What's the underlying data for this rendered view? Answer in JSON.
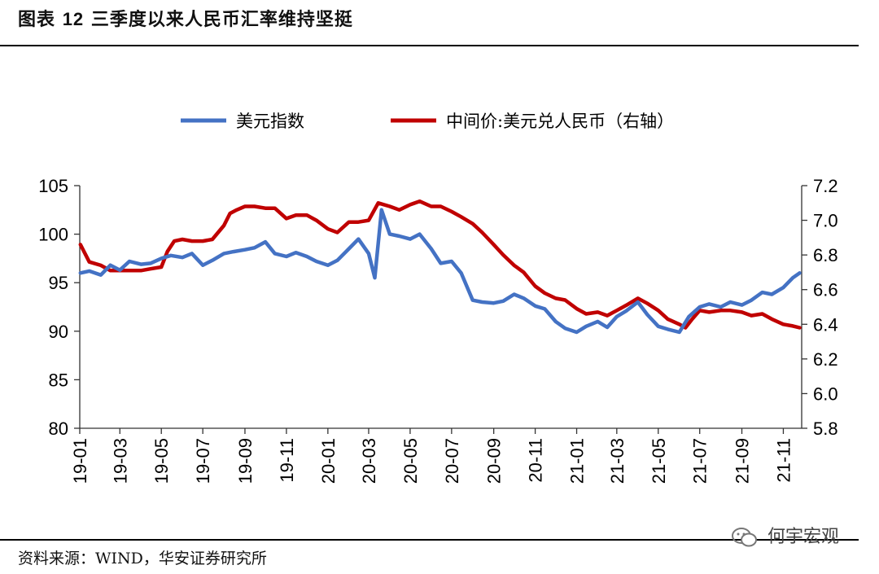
{
  "header": {
    "figure_label": "图表",
    "figure_number": "12",
    "title": "三季度以来人民币汇率维持坚挺"
  },
  "footer": {
    "source": "资料来源：WIND，华安证券研究所",
    "watermark": "何宇宏观"
  },
  "colors": {
    "usd_index": "#4472C4",
    "cny_mid": "#C00000"
  },
  "chart_data": {
    "type": "line",
    "x_tick_labels": [
      "19-01",
      "19-03",
      "19-05",
      "19-07",
      "19-09",
      "19-11",
      "20-01",
      "20-03",
      "20-05",
      "20-07",
      "20-09",
      "20-11",
      "21-01",
      "21-03",
      "21-05",
      "21-07",
      "21-09",
      "21-11"
    ],
    "y_left": {
      "ticks": [
        "105",
        "100",
        "95",
        "90",
        "85",
        "80"
      ],
      "range": [
        80,
        105
      ]
    },
    "y_right": {
      "ticks": [
        "7.2",
        "7.0",
        "6.8",
        "6.6",
        "6.4",
        "6.2",
        "6.0",
        "5.8"
      ],
      "range": [
        5.8,
        7.2
      ]
    },
    "legend": [
      "美元指数",
      "中间价:美元兑人民币（右轴）"
    ],
    "legend_position": "top-center",
    "grid": false,
    "series": [
      {
        "name": "美元指数",
        "axis": "left",
        "x": [
          "2019-01-02",
          "2019-01-15",
          "2019-02-01",
          "2019-02-15",
          "2019-03-01",
          "2019-03-15",
          "2019-04-01",
          "2019-04-15",
          "2019-05-01",
          "2019-05-15",
          "2019-06-01",
          "2019-06-15",
          "2019-07-01",
          "2019-07-15",
          "2019-08-01",
          "2019-08-15",
          "2019-09-01",
          "2019-09-15",
          "2019-10-01",
          "2019-10-15",
          "2019-11-01",
          "2019-11-15",
          "2019-12-01",
          "2019-12-15",
          "2020-01-01",
          "2020-01-15",
          "2020-02-01",
          "2020-02-15",
          "2020-03-01",
          "2020-03-10",
          "2020-03-20",
          "2020-04-01",
          "2020-04-15",
          "2020-05-01",
          "2020-05-15",
          "2020-06-01",
          "2020-06-15",
          "2020-07-01",
          "2020-07-15",
          "2020-08-01",
          "2020-08-15",
          "2020-09-01",
          "2020-09-15",
          "2020-10-01",
          "2020-10-15",
          "2020-11-01",
          "2020-11-15",
          "2020-12-01",
          "2020-12-15",
          "2021-01-01",
          "2021-01-15",
          "2021-02-01",
          "2021-02-15",
          "2021-03-01",
          "2021-03-15",
          "2021-04-01",
          "2021-04-15",
          "2021-05-01",
          "2021-05-15",
          "2021-06-01",
          "2021-06-15",
          "2021-07-01",
          "2021-07-15",
          "2021-08-01",
          "2021-08-15",
          "2021-09-01",
          "2021-09-15",
          "2021-10-01",
          "2021-10-15",
          "2021-11-01",
          "2021-11-15",
          "2021-11-25"
        ],
        "values": [
          96.0,
          96.2,
          95.8,
          96.8,
          96.3,
          97.2,
          96.9,
          97.0,
          97.5,
          97.8,
          97.6,
          98.0,
          96.8,
          97.3,
          98.0,
          98.2,
          98.4,
          98.6,
          99.2,
          98.0,
          97.7,
          98.1,
          97.7,
          97.2,
          96.8,
          97.3,
          98.5,
          99.5,
          98.0,
          95.5,
          102.5,
          100.0,
          99.8,
          99.5,
          100.0,
          98.5,
          97.0,
          97.2,
          96.0,
          93.2,
          93.0,
          92.9,
          93.1,
          93.8,
          93.4,
          92.6,
          92.3,
          91.0,
          90.3,
          89.9,
          90.5,
          91.0,
          90.4,
          91.5,
          92.1,
          93.0,
          91.7,
          90.5,
          90.2,
          89.9,
          91.5,
          92.5,
          92.8,
          92.5,
          93.0,
          92.7,
          93.2,
          94.0,
          93.8,
          94.5,
          95.5,
          96.0
        ]
      },
      {
        "name": "中间价:美元兑人民币（右轴）",
        "axis": "right",
        "x": [
          "2019-01-02",
          "2019-01-15",
          "2019-02-01",
          "2019-02-15",
          "2019-03-01",
          "2019-03-15",
          "2019-04-01",
          "2019-04-15",
          "2019-05-01",
          "2019-05-10",
          "2019-05-20",
          "2019-06-01",
          "2019-06-15",
          "2019-07-01",
          "2019-07-15",
          "2019-08-01",
          "2019-08-10",
          "2019-08-20",
          "2019-09-01",
          "2019-09-15",
          "2019-10-01",
          "2019-10-15",
          "2019-11-01",
          "2019-11-15",
          "2019-12-01",
          "2019-12-15",
          "2020-01-01",
          "2020-01-15",
          "2020-02-01",
          "2020-02-15",
          "2020-03-01",
          "2020-03-15",
          "2020-04-01",
          "2020-04-15",
          "2020-05-01",
          "2020-05-15",
          "2020-06-01",
          "2020-06-15",
          "2020-07-01",
          "2020-07-15",
          "2020-08-01",
          "2020-08-15",
          "2020-09-01",
          "2020-09-15",
          "2020-10-01",
          "2020-10-15",
          "2020-11-01",
          "2020-11-15",
          "2020-12-01",
          "2020-12-15",
          "2021-01-01",
          "2021-01-15",
          "2021-02-01",
          "2021-02-15",
          "2021-03-01",
          "2021-03-15",
          "2021-04-01",
          "2021-04-15",
          "2021-05-01",
          "2021-05-15",
          "2021-06-01",
          "2021-06-10",
          "2021-06-20",
          "2021-07-01",
          "2021-07-15",
          "2021-08-01",
          "2021-08-15",
          "2021-09-01",
          "2021-09-15",
          "2021-10-01",
          "2021-10-15",
          "2021-11-01",
          "2021-11-15",
          "2021-11-25"
        ],
        "values": [
          6.86,
          6.76,
          6.74,
          6.71,
          6.71,
          6.71,
          6.71,
          6.72,
          6.73,
          6.82,
          6.88,
          6.89,
          6.88,
          6.88,
          6.89,
          6.97,
          7.04,
          7.06,
          7.08,
          7.08,
          7.07,
          7.07,
          7.01,
          7.03,
          7.03,
          7.0,
          6.95,
          6.93,
          6.99,
          6.99,
          7.0,
          7.1,
          7.08,
          7.06,
          7.09,
          7.11,
          7.08,
          7.08,
          7.05,
          7.02,
          6.98,
          6.93,
          6.86,
          6.8,
          6.74,
          6.7,
          6.62,
          6.58,
          6.55,
          6.54,
          6.49,
          6.46,
          6.47,
          6.45,
          6.48,
          6.51,
          6.55,
          6.52,
          6.48,
          6.43,
          6.4,
          6.38,
          6.43,
          6.48,
          6.47,
          6.48,
          6.48,
          6.47,
          6.45,
          6.46,
          6.43,
          6.4,
          6.39,
          6.38
        ]
      }
    ]
  }
}
